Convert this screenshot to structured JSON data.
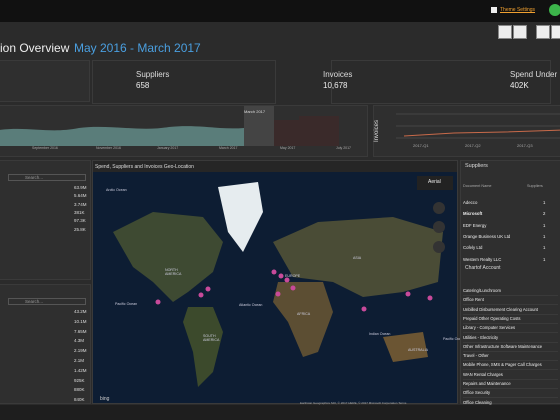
{
  "header": {
    "theme_link": "Theme Settings"
  },
  "page": {
    "title": "ion Overview",
    "period": "May 2016 - March 2017"
  },
  "kpis": [
    {
      "label": "Suppliers",
      "value": "658"
    },
    {
      "label": "Invoices",
      "value": "10,678"
    },
    {
      "label": "Spend Under",
      "value": "402K"
    }
  ],
  "timeline": {
    "labels": [
      "September 2016",
      "November 2016",
      "January 2017",
      "March 2017",
      "May 2017",
      "July 2017"
    ],
    "selection": "March 2017"
  },
  "quarter_chart": {
    "axis_label": "Invoices",
    "labels": [
      "2017-Q1",
      "2017-Q2",
      "2017-Q3"
    ]
  },
  "left_panels": [
    {
      "search": "Search...",
      "values": [
        "63.9M",
        "5.64M",
        "3.74M",
        "381K",
        "97.3K",
        "25.8K"
      ]
    },
    {
      "search": "Search...",
      "values": [
        "43.2M",
        "10.1M",
        "7.65M",
        "4.3M",
        "2.19M",
        "2.1M",
        "1.42M",
        "925K",
        "880K",
        "840K",
        "776K"
      ]
    }
  ],
  "map": {
    "title": "Spend, Suppliers and Invoices Geo-Location",
    "layer": "Aerial",
    "brand": "bing",
    "labels": [
      "Arctic Ocean",
      "NORTH AMERICA",
      "EUROPE",
      "ASIA",
      "AFRICA",
      "SOUTH AMERICA",
      "AUSTRALIA",
      "Pacific Ocean",
      "Atlantic Ocean",
      "Indian Ocean",
      "Pacific Ocean"
    ],
    "attribution": "Earthstar Geographics SIO, © 2017 HERE, © 2017 Microsoft Corporation  Terms"
  },
  "suppliers": {
    "title": "Suppliers",
    "columns": [
      "Document Name",
      "Suppliers"
    ],
    "rows": [
      [
        "Adecco",
        "1"
      ],
      [
        "Microsoft",
        "2"
      ],
      [
        "EDF Energy",
        "1"
      ],
      [
        "Orange Business UK Ltd",
        "1"
      ],
      [
        "Cofely Ltd",
        "1"
      ],
      [
        "Western Realty LLC",
        "1"
      ]
    ]
  },
  "accounts": {
    "title": "Chartof Account",
    "items": [
      "Catering/Lunchroom",
      "Office Rent",
      "Unbilled Disbursement Clearing Account",
      "Prepaid Other Operating Costs",
      "Library - Computer Services",
      "Utilities - Electricity",
      "Other Infrastructure Software Maintenance",
      "Travel - Other",
      "Mobile Phone, SMS & Pager Call Charges",
      "WAN Rental Charges",
      "Repairs and Maintenance",
      "Office Security",
      "Office Cleaning"
    ]
  }
}
